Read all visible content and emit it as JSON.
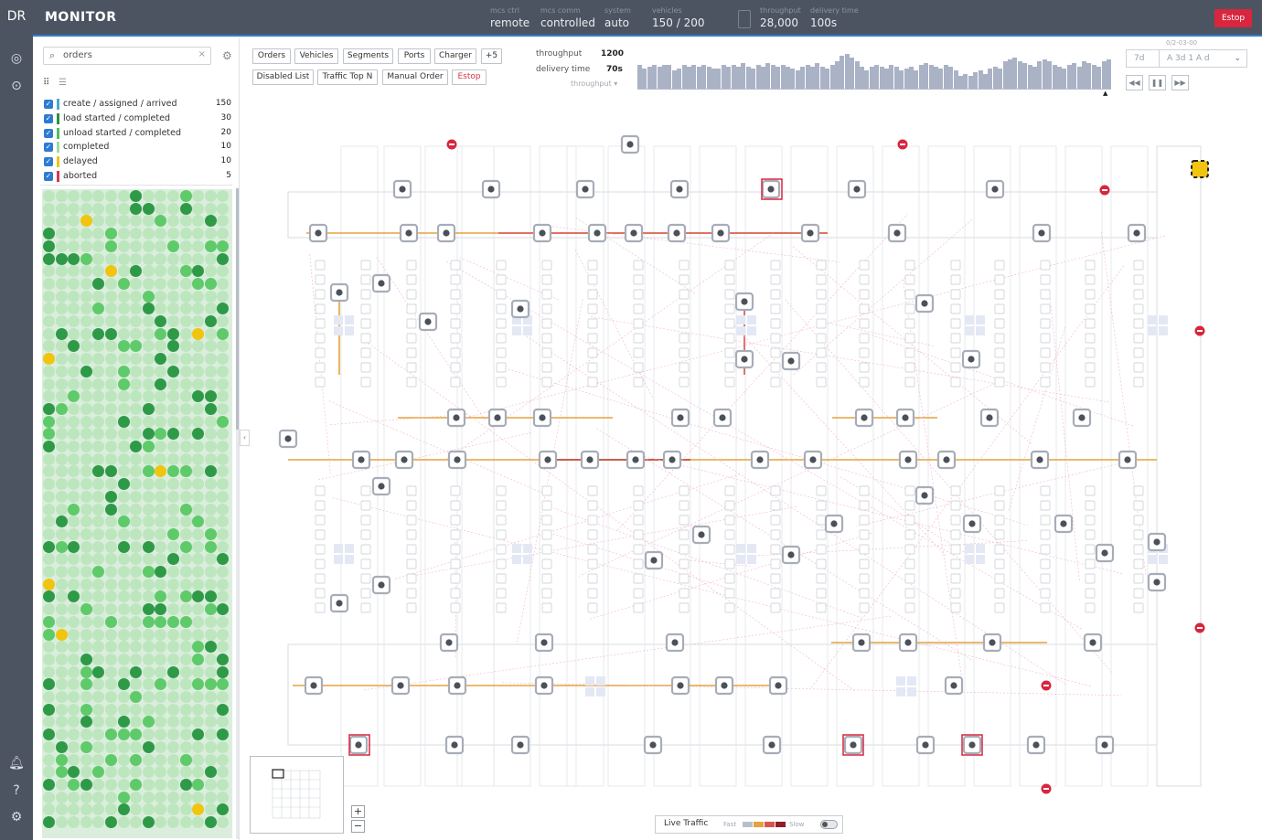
{
  "app": {
    "logo": "DR",
    "title": "MONITOR",
    "estop": "Estop"
  },
  "status": [
    {
      "label": "mcs ctrl",
      "value": "remote"
    },
    {
      "label": "mcs comm",
      "value": "controlled"
    },
    {
      "label": "system",
      "value": "auto"
    },
    {
      "label": "vehicles",
      "value": "150 / 200"
    },
    {
      "label": "throughput",
      "value": "28,000"
    },
    {
      "label": "delivery time",
      "value": "100s"
    }
  ],
  "rail_icons": [
    "dashboard-icon",
    "monitor-icon",
    "bell-icon",
    "help-icon",
    "settings-icon"
  ],
  "sidebar": {
    "search_value": "orders",
    "filters": [
      {
        "label": "create / assigned / arrived",
        "count": "150",
        "color": "#4aa7d8"
      },
      {
        "label": "load started / completed",
        "count": "30",
        "color": "#2f8f45"
      },
      {
        "label": "unload started / completed",
        "count": "20",
        "color": "#48c15e"
      },
      {
        "label": "completed",
        "count": "10",
        "color": "#9fdca4"
      },
      {
        "label": "delayed",
        "count": "10",
        "color": "#f0c419"
      },
      {
        "label": "aborted",
        "count": "5",
        "color": "#d23b4b"
      }
    ],
    "colors": {
      "dark": "#2e9a48",
      "mid": "#5fca6a",
      "light": "#bde6bf",
      "delayed": "#f1c40f"
    }
  },
  "toolbar": {
    "tabs": [
      "Orders",
      "Vehicles",
      "Segments",
      "Ports",
      "Charger",
      "+5"
    ],
    "actions": [
      "Disabled List",
      "Traffic Top N",
      "Manual Order",
      "Estop"
    ]
  },
  "perf": {
    "throughput_label": "throughput",
    "throughput_value": "1200",
    "delivery_label": "delivery time",
    "delivery_value": "70s",
    "selector": "throughput",
    "date": "0/2-03-00",
    "range_left": "7d",
    "range_right": "A 3d 1 A d",
    "bars": [
      26,
      22,
      24,
      26,
      24,
      26,
      26,
      20,
      22,
      26,
      24,
      26,
      24,
      26,
      24,
      22,
      22,
      26,
      24,
      26,
      24,
      28,
      24,
      22,
      26,
      24,
      28,
      26,
      24,
      26,
      24,
      22,
      20,
      24,
      26,
      24,
      28,
      24,
      22,
      26,
      30,
      36,
      38,
      34,
      30,
      24,
      20,
      24,
      26,
      24,
      22,
      26,
      24,
      20,
      22,
      24,
      20,
      26,
      28,
      26,
      24,
      22,
      26,
      24,
      20,
      14,
      16,
      14,
      18,
      20,
      16,
      22,
      24,
      22,
      30,
      32,
      34,
      30,
      28,
      26,
      24,
      30,
      32,
      30,
      26,
      24,
      22,
      26,
      28,
      24,
      30,
      28,
      26,
      24,
      30,
      32
    ]
  },
  "playback": [
    "rewind",
    "pause",
    "forward"
  ],
  "legend": {
    "title": "Live Traffic",
    "fast": "Fast",
    "slow": "Slow"
  },
  "zoom": {
    "in": "+",
    "out": "−"
  }
}
